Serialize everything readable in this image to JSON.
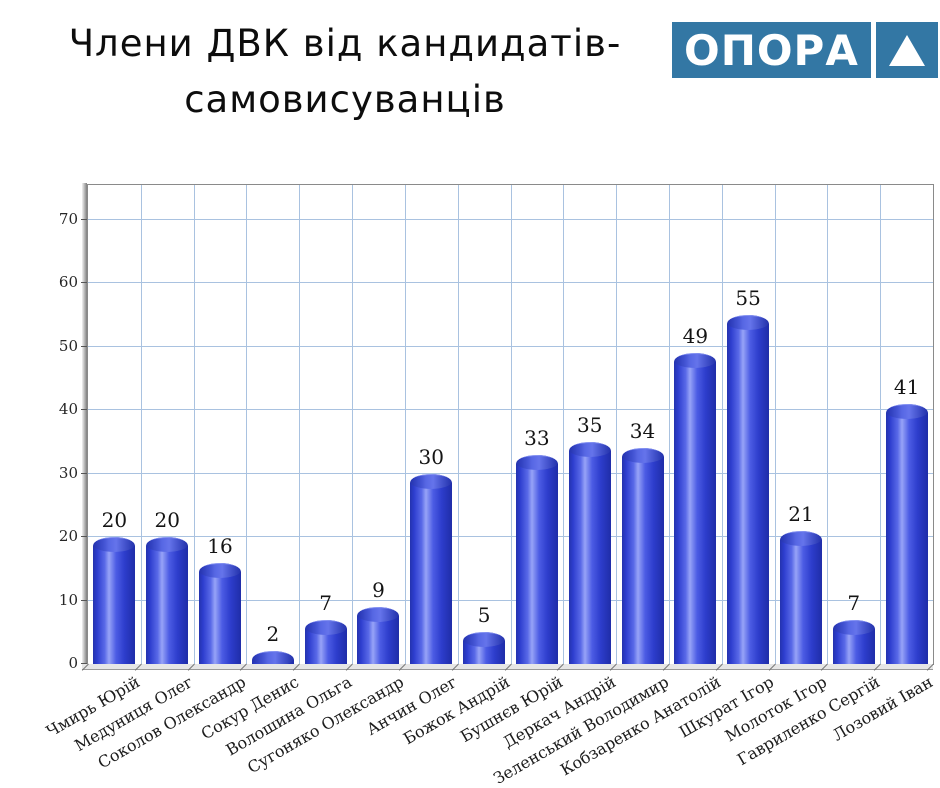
{
  "title": {
    "line1": "Члени ДВК  від кандидатів-",
    "line2": "самовисуванців"
  },
  "logo": {
    "text": "ОПОРА",
    "triangle_icon": "triangle-up",
    "bg_color": "#3377a4",
    "fg_color": "#ffffff"
  },
  "chart_data": {
    "type": "bar",
    "title": "Члени ДВК від кандидатів-самовисуванців",
    "categories": [
      "Чмирь Юрій",
      "Медуниця Олег",
      "Соколов Олександр",
      "Сокур Денис",
      "Волошина Ольга",
      "Сугоняко Олександр",
      "Анчин Олег",
      "Божок Андрій",
      "Бушнєв Юрій",
      "Деркач Андрій",
      "Зеленський Володимир",
      "Кобзаренко Анатолій",
      "Шкурат Ігор",
      "Молоток Ігор",
      "Гавриленко Сергій",
      "Лозовий Іван"
    ],
    "values": [
      20,
      20,
      16,
      2,
      7,
      9,
      30,
      5,
      33,
      35,
      34,
      49,
      55,
      21,
      7,
      41
    ],
    "xlabel": "",
    "ylabel": "",
    "y_ticks": [
      0,
      10,
      20,
      30,
      40,
      50,
      60,
      70
    ],
    "ylim": [
      0,
      75.5
    ],
    "grid": true,
    "legend": false,
    "bar_color": "#3346d6",
    "grid_color": "#a9c2e0",
    "value_labels_shown": true
  }
}
